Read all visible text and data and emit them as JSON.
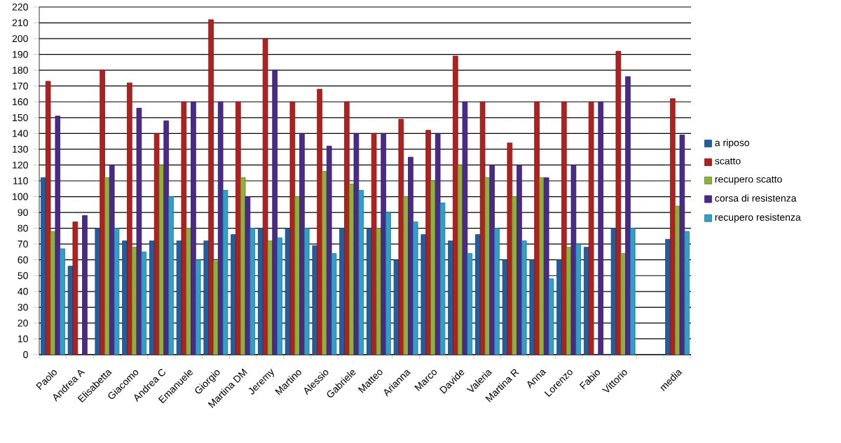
{
  "chart_data": {
    "type": "bar",
    "categories": [
      "Paolo",
      "Andrea A",
      "Elisabetta",
      "Giacomo",
      "Andrea C",
      "Emanuele",
      "Giorgio",
      "Martina DM",
      "Jeremy",
      "Martino",
      "Alessio",
      "Gabriele",
      "Matteo",
      "Arianna",
      "Marco",
      "Davide",
      "Valeria",
      "Martina R",
      "Anna",
      "Lorenzo",
      "Fabio",
      "Vittorio",
      null,
      "media"
    ],
    "series": [
      {
        "name": "a riposo",
        "color": "#1f5f9f",
        "values": [
          112,
          56,
          80,
          72,
          72,
          72,
          72,
          76,
          80,
          80,
          69,
          80,
          80,
          60,
          76,
          72,
          76,
          60,
          60,
          60,
          68,
          80,
          null,
          73
        ]
      },
      {
        "name": "scatto",
        "color": "#b0201e",
        "values": [
          173,
          84,
          180,
          172,
          140,
          160,
          212,
          160,
          200,
          160,
          168,
          160,
          140,
          149,
          142,
          189,
          160,
          134,
          160,
          160,
          160,
          192,
          null,
          162
        ]
      },
      {
        "name": "recupero scatto",
        "color": "#8fb03a",
        "values": [
          78,
          null,
          112,
          68,
          120,
          80,
          59,
          112,
          72,
          100,
          116,
          108,
          80,
          100,
          110,
          120,
          112,
          100,
          112,
          68,
          null,
          64,
          null,
          94
        ]
      },
      {
        "name": "corsa di resistenza",
        "color": "#4a2a88",
        "values": [
          151,
          88,
          120,
          156,
          148,
          160,
          160,
          100,
          180,
          140,
          132,
          140,
          140,
          125,
          140,
          160,
          120,
          120,
          112,
          120,
          160,
          176,
          null,
          139
        ]
      },
      {
        "name": "recupero resistenza",
        "color": "#2fa0c8",
        "values": [
          67,
          null,
          80,
          65,
          100,
          60,
          104,
          80,
          74,
          80,
          64,
          104,
          90,
          84,
          96,
          64,
          80,
          72,
          48,
          70,
          null,
          80,
          null,
          78
        ]
      }
    ],
    "ylim": [
      0,
      220
    ],
    "yticks": [
      0,
      10,
      20,
      30,
      40,
      50,
      60,
      70,
      80,
      90,
      100,
      110,
      120,
      130,
      140,
      150,
      160,
      170,
      180,
      190,
      200,
      210,
      220
    ],
    "grid": "y",
    "legend": "right"
  }
}
